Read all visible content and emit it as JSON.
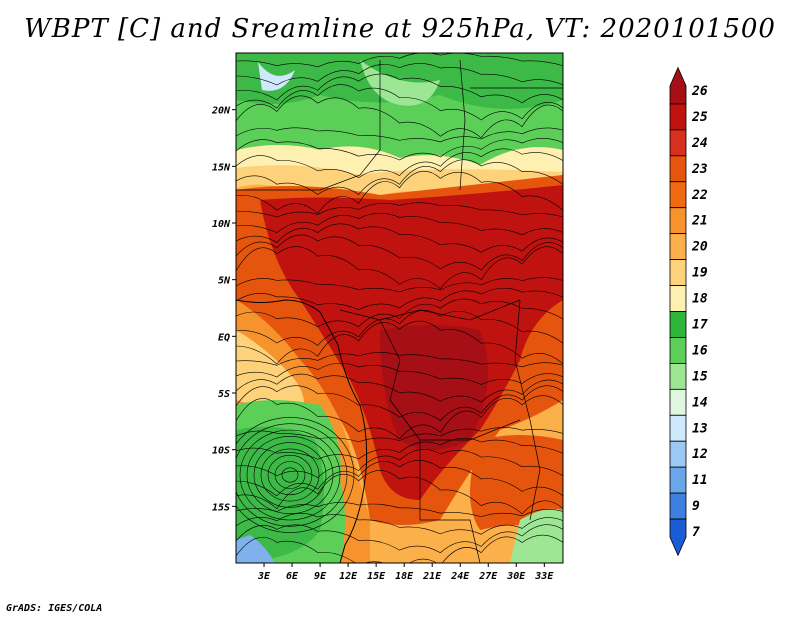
{
  "title": "WBPT [C] and Sreamline at 925hPa, VT: 2020101500",
  "credit": "GrADS: IGES/COLA",
  "map": {
    "lon_range": [
      0,
      35
    ],
    "lat_range": [
      -20,
      25
    ],
    "lon_ticks": [
      "3E",
      "6E",
      "9E",
      "12E",
      "15E",
      "18E",
      "21E",
      "24E",
      "27E",
      "30E",
      "33E"
    ],
    "lat_ticks": [
      "20N",
      "15N",
      "10N",
      "5N",
      "EQ",
      "5S",
      "10S",
      "15S"
    ]
  },
  "colorbar": {
    "labels": [
      "26",
      "25",
      "24",
      "23",
      "22",
      "21",
      "20",
      "19",
      "18",
      "17",
      "16",
      "15",
      "14",
      "13",
      "12",
      "11",
      "9",
      "7"
    ],
    "colors": [
      "#a50f15",
      "#c0130f",
      "#d7301f",
      "#e6550d",
      "#f16913",
      "#f7932c",
      "#fbb04a",
      "#fdd27a",
      "#fef0b0",
      "#2fb63a",
      "#5ccf58",
      "#9de694",
      "#e1f6de",
      "#cfe8fb",
      "#9cc9f3",
      "#6aa6ea",
      "#3f7fe0",
      "#1a5cd5"
    ]
  },
  "legend_colors": {
    "hot": "#c0130f",
    "warm": "#e6550d",
    "mild": "#fbb04a",
    "cool": "#fef0b0",
    "green": "#3cb946",
    "lightgreen": "#8edb87",
    "blue": "#7fb2ec"
  }
}
